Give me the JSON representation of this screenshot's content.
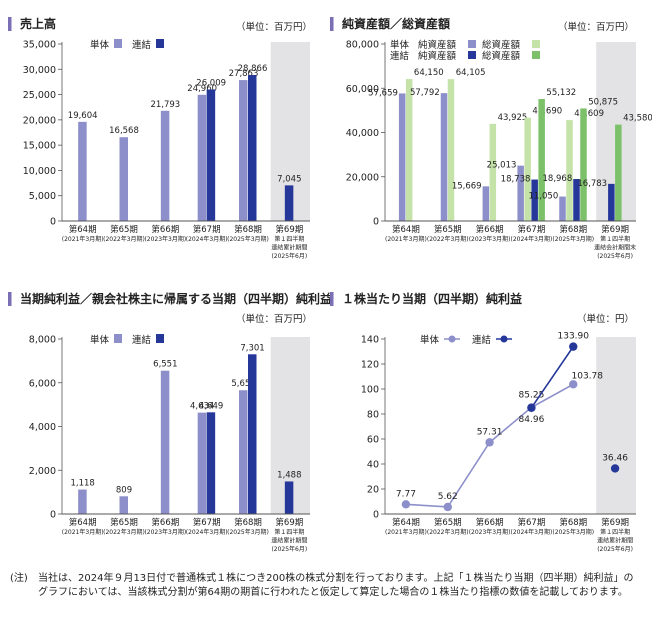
{
  "colors": {
    "accent": "#7a6fb5",
    "single": "#8c8fca",
    "consol": "#26379a",
    "single_total": "#c5e3a8",
    "consol_total": "#7cc16a",
    "shade": "#e3e3e5",
    "axis": "#555555",
    "text": "#222222"
  },
  "footnote": {
    "mark": "(注)",
    "text": "当社は、2024年９月13日付で普通株式１株につき200株の株式分割を行っております。上記「１株当たり当期（四半期）純利益」のグラフにおいては、当該株式分割が第64期の期首に行われたと仮定して算定した場合の１株当たり指標の数値を記載しております。"
  },
  "chart_data": [
    {
      "type": "bar",
      "title": "売上高",
      "unit": "（単位：百万円）",
      "categories": [
        "第64期",
        "第65期",
        "第66期",
        "第67期",
        "第68期",
        "第69期"
      ],
      "category_sub": [
        [
          "(2021年3月期)"
        ],
        [
          "(2022年3月期)"
        ],
        [
          "(2023年3月期)"
        ],
        [
          "(2024年3月期)"
        ],
        [
          "(2025年3月期)"
        ],
        [
          "第１四半期",
          "連結累計期間",
          "(2025年6月)"
        ]
      ],
      "ylim": [
        0,
        35000
      ],
      "yticks": [
        0,
        5000,
        10000,
        15000,
        20000,
        25000,
        30000,
        35000
      ],
      "ytick_labels": [
        "0",
        "5,000",
        "10,000",
        "15,000",
        "20,000",
        "25,000",
        "30,000",
        "35,000"
      ],
      "legend": [
        {
          "label": "単体",
          "color": "#8c8fca"
        },
        {
          "label": "連結",
          "color": "#26379a"
        }
      ],
      "series": [
        {
          "name": "単体",
          "color": "#8c8fca",
          "values": [
            19604,
            16568,
            21793,
            24960,
            27863,
            null
          ],
          "labels": [
            "19,604",
            "16,568",
            "21,793",
            "24,960",
            "27,863",
            ""
          ]
        },
        {
          "name": "連結",
          "color": "#26379a",
          "values": [
            null,
            null,
            null,
            26009,
            28866,
            7045
          ],
          "labels": [
            "",
            "",
            "",
            "26,009",
            "28,866",
            "7,045"
          ]
        }
      ],
      "shaded_last": true
    },
    {
      "type": "bar",
      "title": "純資産額／総資産額",
      "unit": "（単位：百万円）",
      "categories": [
        "第64期",
        "第65期",
        "第66期",
        "第67期",
        "第68期",
        "第69期"
      ],
      "category_sub": [
        [
          "(2021年3月期)"
        ],
        [
          "(2022年3月期)"
        ],
        [
          "(2023年3月期)"
        ],
        [
          "(2024年3月期)"
        ],
        [
          "(2025年3月期)"
        ],
        [
          "第１四半期",
          "連結会計期間末",
          "(2025年6月)"
        ]
      ],
      "ylim": [
        0,
        80000
      ],
      "yticks": [
        0,
        20000,
        40000,
        60000,
        80000
      ],
      "ytick_labels": [
        "0",
        "20,000",
        "40,000",
        "60,000",
        "80,000"
      ],
      "legend_rows": [
        {
          "group": "単体",
          "items": [
            {
              "label": "純資産額",
              "color": "#8c8fca"
            },
            {
              "label": "総資産額",
              "color": "#c5e3a8"
            }
          ]
        },
        {
          "group": "連結",
          "items": [
            {
              "label": "純資産額",
              "color": "#26379a"
            },
            {
              "label": "総資産額",
              "color": "#7cc16a"
            }
          ]
        }
      ],
      "series": [
        {
          "name": "単体 純資産額",
          "color": "#8c8fca",
          "values": [
            57659,
            57792,
            15669,
            25013,
            11050,
            null
          ],
          "labels": [
            "57,659",
            "57,792",
            "15,669",
            "25,013",
            "11,050",
            ""
          ]
        },
        {
          "name": "単体 総資産額",
          "color": "#c5e3a8",
          "values": [
            64150,
            64105,
            43925,
            46690,
            45609,
            null
          ],
          "labels": [
            "64,150",
            "64,105",
            "43,925",
            "46,690",
            "45,609",
            ""
          ]
        },
        {
          "name": "連結 純資産額",
          "color": "#26379a",
          "values": [
            null,
            null,
            null,
            18738,
            18968,
            16783
          ],
          "labels": [
            "",
            "",
            "",
            "18,738",
            "18,968",
            "16,783"
          ]
        },
        {
          "name": "連結 総資産額",
          "color": "#7cc16a",
          "values": [
            null,
            null,
            null,
            55132,
            50875,
            43580
          ],
          "labels": [
            "",
            "",
            "",
            "55,132",
            "50,875",
            "43,580"
          ]
        }
      ],
      "shaded_last": true
    },
    {
      "type": "bar",
      "title": "当期純利益／親会社株主に帰属する当期（四半期）純利益",
      "unit": "（単位：百万円）",
      "categories": [
        "第64期",
        "第65期",
        "第66期",
        "第67期",
        "第68期",
        "第69期"
      ],
      "category_sub": [
        [
          "(2021年3月期)"
        ],
        [
          "(2022年3月期)"
        ],
        [
          "(2023年3月期)"
        ],
        [
          "(2024年3月期)"
        ],
        [
          "(2025年3月期)"
        ],
        [
          "第１四半期",
          "連結累計期間",
          "(2025年6月)"
        ]
      ],
      "ylim": [
        0,
        8000
      ],
      "yticks": [
        0,
        2000,
        4000,
        6000,
        8000
      ],
      "ytick_labels": [
        "0",
        "2,000",
        "4,000",
        "6,000",
        "8,000"
      ],
      "legend": [
        {
          "label": "単体",
          "color": "#8c8fca"
        },
        {
          "label": "連結",
          "color": "#26379a"
        }
      ],
      "series": [
        {
          "name": "単体",
          "color": "#8c8fca",
          "values": [
            1118,
            809,
            6551,
            4634,
            5658,
            null
          ],
          "labels": [
            "1,118",
            "809",
            "6,551",
            "4,634",
            "5,658",
            ""
          ]
        },
        {
          "name": "連結",
          "color": "#26379a",
          "values": [
            null,
            null,
            null,
            4649,
            7301,
            1488
          ],
          "labels": [
            "",
            "",
            "",
            "4,649",
            "7,301",
            "1,488"
          ]
        }
      ],
      "shaded_last": true
    },
    {
      "type": "line",
      "title": "１株当たり当期（四半期）純利益",
      "unit": "（単位：円）",
      "categories": [
        "第64期",
        "第65期",
        "第66期",
        "第67期",
        "第68期",
        "第69期"
      ],
      "category_sub": [
        [
          "(2021年3月期)"
        ],
        [
          "(2022年3月期)"
        ],
        [
          "(2023年3月期)"
        ],
        [
          "(2024年3月期)"
        ],
        [
          "(2025年3月期)"
        ],
        [
          "第１四半期",
          "連結累計期間",
          "(2025年6月)"
        ]
      ],
      "ylim": [
        0,
        140
      ],
      "yticks": [
        0,
        20,
        40,
        60,
        80,
        100,
        120,
        140
      ],
      "ytick_labels": [
        "0",
        "20",
        "40",
        "60",
        "80",
        "100",
        "120",
        "140"
      ],
      "legend": [
        {
          "label": "単体",
          "color": "#8c8fca"
        },
        {
          "label": "連結",
          "color": "#26379a"
        }
      ],
      "series": [
        {
          "name": "単体",
          "color": "#8c8fca",
          "values": [
            7.77,
            5.62,
            57.31,
            85.25,
            103.78,
            null
          ],
          "labels": [
            "7.77",
            "5.62",
            "57.31",
            "85.25",
            "103.78",
            ""
          ]
        },
        {
          "name": "連結",
          "color": "#26379a",
          "values": [
            null,
            null,
            null,
            84.96,
            133.9,
            36.46
          ],
          "labels": [
            "",
            "",
            "",
            "84.96",
            "133.90",
            "36.46"
          ]
        }
      ],
      "connect_consol_until": 4,
      "shaded_last": true
    }
  ]
}
